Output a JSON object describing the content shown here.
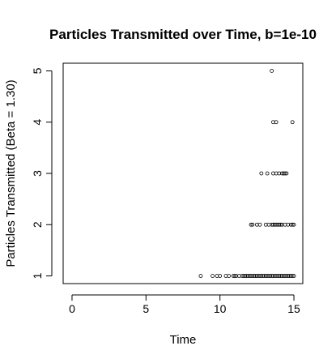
{
  "chart_data": {
    "type": "scatter",
    "title": "Particles Transmitted over Time, b=1e-10",
    "xlabel": "Time",
    "ylabel": "Particles Transmitted (Beta = 1.30)",
    "xlim": [
      -0.6,
      15.6
    ],
    "ylim": [
      0.85,
      5.15
    ],
    "x_ticks": [
      0,
      5,
      10,
      15
    ],
    "y_ticks": [
      1,
      2,
      3,
      4,
      5
    ],
    "grid": false,
    "marker": "open-circle",
    "series": [
      {
        "points": [
          [
            8.7,
            1
          ],
          [
            9.5,
            1
          ],
          [
            9.8,
            1
          ],
          [
            10.0,
            1
          ],
          [
            10.4,
            1
          ],
          [
            10.6,
            1
          ],
          [
            10.9,
            1
          ],
          [
            11.0,
            1
          ],
          [
            11.1,
            1
          ],
          [
            11.3,
            1
          ],
          [
            11.5,
            1
          ],
          [
            11.6,
            1
          ],
          [
            11.7,
            1
          ],
          [
            11.8,
            1
          ],
          [
            11.9,
            1
          ],
          [
            12.0,
            1
          ],
          [
            12.1,
            1
          ],
          [
            12.2,
            1
          ],
          [
            12.3,
            1
          ],
          [
            12.4,
            1
          ],
          [
            12.5,
            1
          ],
          [
            12.6,
            1
          ],
          [
            12.7,
            1
          ],
          [
            12.8,
            1
          ],
          [
            12.9,
            1
          ],
          [
            13.0,
            1
          ],
          [
            13.1,
            1
          ],
          [
            13.2,
            1
          ],
          [
            13.3,
            1
          ],
          [
            13.4,
            1
          ],
          [
            13.5,
            1
          ],
          [
            13.6,
            1
          ],
          [
            13.7,
            1
          ],
          [
            13.8,
            1
          ],
          [
            13.9,
            1
          ],
          [
            14.0,
            1
          ],
          [
            14.1,
            1
          ],
          [
            14.2,
            1
          ],
          [
            14.3,
            1
          ],
          [
            14.4,
            1
          ],
          [
            14.5,
            1
          ],
          [
            14.6,
            1
          ],
          [
            14.7,
            1
          ],
          [
            14.8,
            1
          ],
          [
            14.9,
            1
          ],
          [
            15.0,
            1
          ],
          [
            12.1,
            2
          ],
          [
            12.2,
            2
          ],
          [
            12.5,
            2
          ],
          [
            12.7,
            2
          ],
          [
            13.1,
            2
          ],
          [
            13.3,
            2
          ],
          [
            13.5,
            2
          ],
          [
            13.6,
            2
          ],
          [
            13.7,
            2
          ],
          [
            13.8,
            2
          ],
          [
            13.9,
            2
          ],
          [
            14.0,
            2
          ],
          [
            14.1,
            2
          ],
          [
            14.2,
            2
          ],
          [
            14.4,
            2
          ],
          [
            14.6,
            2
          ],
          [
            14.8,
            2
          ],
          [
            14.9,
            2
          ],
          [
            15.0,
            2
          ],
          [
            12.8,
            3
          ],
          [
            13.2,
            3
          ],
          [
            13.6,
            3
          ],
          [
            13.8,
            3
          ],
          [
            14.0,
            3
          ],
          [
            14.2,
            3
          ],
          [
            14.3,
            3
          ],
          [
            14.4,
            3
          ],
          [
            14.5,
            3
          ],
          [
            13.6,
            4
          ],
          [
            13.8,
            4
          ],
          [
            14.9,
            4
          ],
          [
            13.5,
            5
          ]
        ]
      }
    ]
  }
}
